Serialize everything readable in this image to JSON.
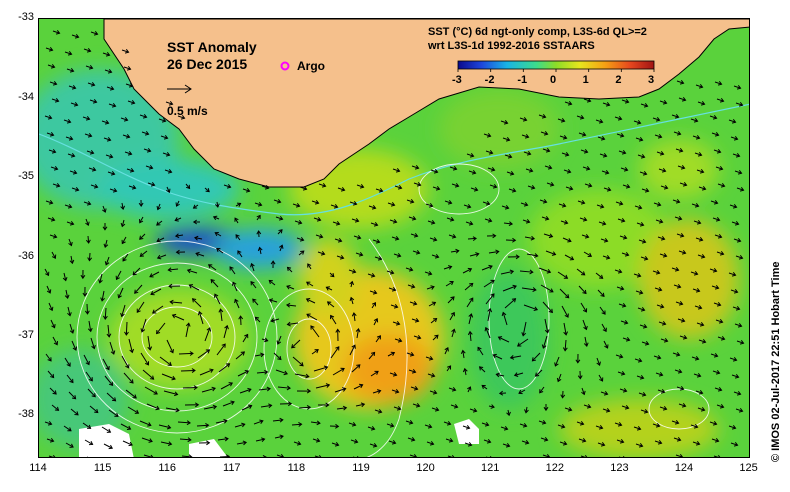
{
  "map": {
    "title": "SST Anomaly",
    "date": "26 Dec 2015",
    "argo_label": "Argo",
    "scale_label": "0.5 m/s",
    "product_line1": "SST (°C) 6d ngt-only comp, L3S-6d QL>=2",
    "product_line2": "wrt L3S-1d 1992-2016 SSTAARS",
    "colorbar_ticks": [
      "-3",
      "-2",
      "-1",
      "0",
      "1",
      "2",
      "3"
    ],
    "colorbar_range": [
      -3,
      3
    ],
    "colorbar_colors": [
      "#0a0a8c",
      "#1e46dc",
      "#19b4e6",
      "#3cdc8c",
      "#8cdc28",
      "#e6e61e",
      "#f5a014",
      "#e6461e",
      "#a01414"
    ],
    "lat_labels": [
      "-33",
      "-34",
      "-35",
      "-36",
      "-37",
      "-38"
    ],
    "lon_labels": [
      "114",
      "115",
      "116",
      "117",
      "118",
      "119",
      "120",
      "121",
      "122",
      "123",
      "124",
      "125"
    ],
    "land_color": "#f5c08c",
    "argo_color": "#ff00ff",
    "credit": "© IMOS 02-Jul-2017 22:51 Hobart Time"
  }
}
